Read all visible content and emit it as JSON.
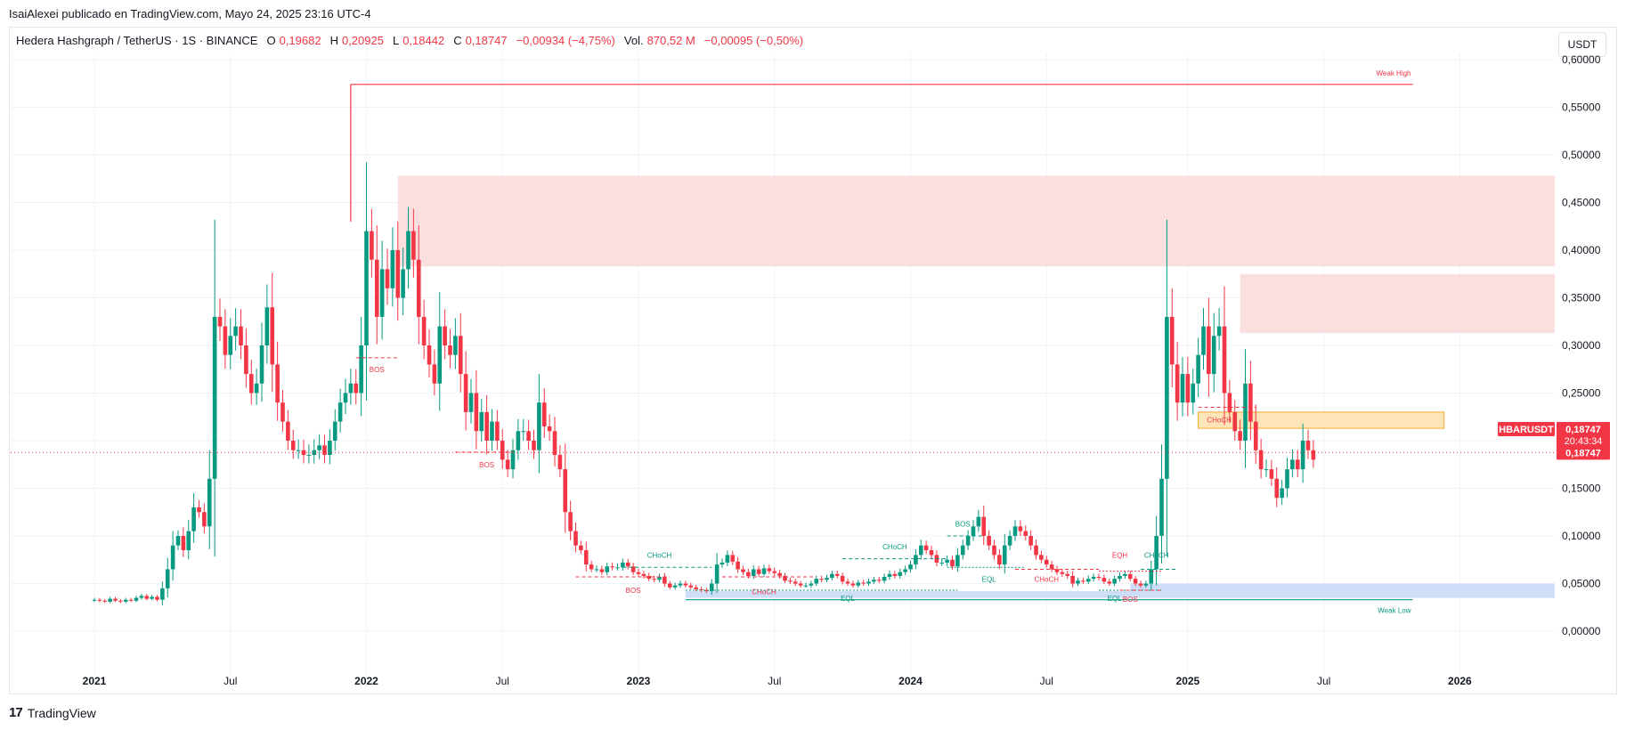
{
  "publish_line": "IsaiAlexei publicado en TradingView.com, Mayo 24, 2025 23:16 UTC-4",
  "legend": {
    "symbol": "Hedera Hashgraph / TetherUS · 1S · BINANCE",
    "o_label": "O",
    "o_value": "0,19682",
    "h_label": "H",
    "h_value": "0,20925",
    "l_label": "L",
    "l_value": "0,18442",
    "c_label": "C",
    "c_value": "0,18747",
    "change": "−0,00934 (−4,75%)",
    "vol_label": "Vol.",
    "vol_value": "870,52 M",
    "vol_change": "−0,00095 (−0,50%)"
  },
  "currency_button": "USDT",
  "footer": {
    "logo": "17",
    "brand": "TradingView"
  },
  "colors": {
    "up": "#089981",
    "down": "#f23645",
    "supply_zone": "#fbdcdc",
    "demand_zone": "#c9daf8",
    "fvg_zone": "#fde3b0",
    "grid": "#f0f3fa"
  },
  "price_labels": {
    "symbol_tag": "HBARUSDT",
    "price": "0,18747",
    "countdown": "20:43:34",
    "last_close": "0,18747"
  },
  "chart_data": {
    "type": "candlestick",
    "ylim": [
      0.0,
      0.6
    ],
    "y_ticks": [
      {
        "v": 0.0,
        "label": "0,00000"
      },
      {
        "v": 0.05,
        "label": "0,05000"
      },
      {
        "v": 0.1,
        "label": "0,10000"
      },
      {
        "v": 0.15,
        "label": "0,15000"
      },
      {
        "v": 0.2,
        "label": "0,20000"
      },
      {
        "v": 0.25,
        "label": "0,25000"
      },
      {
        "v": 0.3,
        "label": "0,30000"
      },
      {
        "v": 0.35,
        "label": "0,35000"
      },
      {
        "v": 0.4,
        "label": "0,40000"
      },
      {
        "v": 0.45,
        "label": "0,45000"
      },
      {
        "v": 0.5,
        "label": "0,50000"
      },
      {
        "v": 0.55,
        "label": "0,55000"
      },
      {
        "v": 0.6,
        "label": "0,60000"
      }
    ],
    "x_ticks": [
      {
        "week": 0,
        "label": "2021",
        "bold": true
      },
      {
        "week": 26,
        "label": "Jul",
        "bold": false
      },
      {
        "week": 52,
        "label": "2022",
        "bold": true
      },
      {
        "week": 78,
        "label": "Jul",
        "bold": false
      },
      {
        "week": 104,
        "label": "2023",
        "bold": true
      },
      {
        "week": 130,
        "label": "Jul",
        "bold": false
      },
      {
        "week": 156,
        "label": "2024",
        "bold": true
      },
      {
        "week": 182,
        "label": "Jul",
        "bold": false
      },
      {
        "week": 209,
        "label": "2025",
        "bold": true
      },
      {
        "week": 235,
        "label": "Jul",
        "bold": false
      },
      {
        "week": 261,
        "label": "2026",
        "bold": true
      }
    ],
    "closes": [
      0.033,
      0.032,
      0.031,
      0.034,
      0.032,
      0.031,
      0.033,
      0.032,
      0.035,
      0.037,
      0.034,
      0.036,
      0.033,
      0.045,
      0.065,
      0.09,
      0.1,
      0.085,
      0.105,
      0.13,
      0.125,
      0.11,
      0.16,
      0.33,
      0.32,
      0.29,
      0.31,
      0.32,
      0.3,
      0.27,
      0.25,
      0.26,
      0.3,
      0.34,
      0.28,
      0.24,
      0.22,
      0.2,
      0.19,
      0.19,
      0.185,
      0.185,
      0.19,
      0.195,
      0.185,
      0.2,
      0.22,
      0.24,
      0.25,
      0.26,
      0.25,
      0.3,
      0.42,
      0.39,
      0.33,
      0.38,
      0.36,
      0.4,
      0.35,
      0.38,
      0.42,
      0.39,
      0.33,
      0.3,
      0.28,
      0.26,
      0.32,
      0.3,
      0.29,
      0.31,
      0.27,
      0.23,
      0.25,
      0.21,
      0.23,
      0.2,
      0.22,
      0.2,
      0.18,
      0.17,
      0.19,
      0.21,
      0.21,
      0.2,
      0.19,
      0.24,
      0.215,
      0.21,
      0.185,
      0.17,
      0.125,
      0.105,
      0.09,
      0.085,
      0.07,
      0.065,
      0.065,
      0.062,
      0.068,
      0.067,
      0.067,
      0.072,
      0.068,
      0.062,
      0.06,
      0.058,
      0.055,
      0.054,
      0.057,
      0.05,
      0.046,
      0.048,
      0.05,
      0.048,
      0.046,
      0.044,
      0.043,
      0.042,
      0.05,
      0.07,
      0.072,
      0.08,
      0.073,
      0.065,
      0.062,
      0.058,
      0.065,
      0.06,
      0.066,
      0.063,
      0.061,
      0.058,
      0.053,
      0.052,
      0.05,
      0.048,
      0.048,
      0.05,
      0.055,
      0.054,
      0.056,
      0.06,
      0.058,
      0.052,
      0.05,
      0.048,
      0.051,
      0.05,
      0.052,
      0.054,
      0.053,
      0.057,
      0.06,
      0.058,
      0.062,
      0.065,
      0.07,
      0.08,
      0.09,
      0.085,
      0.08,
      0.072,
      0.072,
      0.075,
      0.068,
      0.08,
      0.09,
      0.1,
      0.11,
      0.12,
      0.1,
      0.09,
      0.08,
      0.07,
      0.09,
      0.1,
      0.11,
      0.105,
      0.1,
      0.09,
      0.08,
      0.075,
      0.07,
      0.065,
      0.062,
      0.06,
      0.058,
      0.05,
      0.053,
      0.052,
      0.055,
      0.057,
      0.056,
      0.052,
      0.05,
      0.055,
      0.058,
      0.06,
      0.055,
      0.05,
      0.048,
      0.05,
      0.065,
      0.1,
      0.16,
      0.33,
      0.28,
      0.24,
      0.27,
      0.24,
      0.26,
      0.29,
      0.32,
      0.27,
      0.31,
      0.32,
      0.25,
      0.23,
      0.21,
      0.2,
      0.26,
      0.22,
      0.19,
      0.17,
      0.17,
      0.16,
      0.14,
      0.15,
      0.17,
      0.18,
      0.17,
      0.2,
      0.19,
      0.18
    ],
    "sample_interval": "weekly",
    "zones": [
      {
        "kind": "supply",
        "from_week": 58,
        "to_week": 280,
        "low": 0.383,
        "high": 0.478
      },
      {
        "kind": "supply",
        "from_week": 219,
        "to_week": 280,
        "low": 0.313,
        "high": 0.375
      },
      {
        "kind": "fvg",
        "from_week": 211,
        "to_week": 258,
        "low": 0.213,
        "high": 0.23
      },
      {
        "kind": "demand",
        "from_week": 113,
        "to_week": 280,
        "low": 0.035,
        "high": 0.042
      },
      {
        "kind": "demand",
        "from_week": 198,
        "to_week": 280,
        "low": 0.042,
        "high": 0.05
      }
    ],
    "levels": [
      {
        "label": "Weak High",
        "week_from": 49,
        "week_to": 252,
        "value": 0.574,
        "color": "#f23645"
      },
      {
        "label": "Weak Low",
        "week_from": 113,
        "week_to": 252,
        "value": 0.033,
        "color": "#089981"
      }
    ],
    "structure": [
      {
        "label": "BOS",
        "week_from": 50,
        "week_to": 58,
        "value": 0.287,
        "color": "#f23645",
        "label_week": 54,
        "label_value": 0.272
      },
      {
        "label": "BOS",
        "week_from": 69,
        "week_to": 80,
        "value": 0.188,
        "color": "#f23645",
        "label_week": 75,
        "label_value": 0.172
      },
      {
        "label": "BOS",
        "week_from": 92,
        "week_to": 110,
        "value": 0.057,
        "color": "#f23645",
        "label_week": 103,
        "label_value": 0.04
      },
      {
        "label": "CHoCH",
        "week_from": 101,
        "week_to": 118,
        "value": 0.067,
        "color": "#089981",
        "label_week": 108,
        "label_value": 0.077
      },
      {
        "label": "CHoCH",
        "week_from": 120,
        "week_to": 138,
        "value": 0.057,
        "color": "#f23645",
        "label_week": 128,
        "label_value": 0.039
      },
      {
        "label": "CHoCH",
        "week_from": 143,
        "week_to": 163,
        "value": 0.076,
        "color": "#089981",
        "label_week": 153,
        "label_value": 0.086
      },
      {
        "label": "BOS",
        "week_from": 163,
        "week_to": 170,
        "value": 0.1,
        "color": "#089981",
        "label_week": 166,
        "label_value": 0.11
      },
      {
        "label": "EQL",
        "week_from": 163,
        "week_to": 178,
        "value": 0.067,
        "color": "#089981",
        "label_week": 171,
        "label_value": 0.052
      },
      {
        "label": "CHoCH",
        "week_from": 176,
        "week_to": 192,
        "value": 0.065,
        "color": "#f23645",
        "label_week": 182,
        "label_value": 0.052
      },
      {
        "label": "EQH",
        "week_from": 192,
        "week_to": 204,
        "value": 0.063,
        "color": "#f23645",
        "label_week": 196,
        "label_value": 0.077
      },
      {
        "label": "CHoCH",
        "week_from": 200,
        "week_to": 207,
        "value": 0.065,
        "color": "#089981",
        "label_week": 203,
        "label_value": 0.077
      },
      {
        "label": "EQL",
        "week_from": 192,
        "week_to": 204,
        "value": 0.043,
        "color": "#089981",
        "label_week": 195,
        "label_value": 0.032
      },
      {
        "label": "BOS",
        "week_from": 196,
        "week_to": 204,
        "value": 0.043,
        "color": "#f23645",
        "label_week": 198,
        "label_value": 0.031
      },
      {
        "label": "CHoCH",
        "week_from": 211,
        "week_to": 222,
        "value": 0.235,
        "color": "#f23645",
        "label_week": 215,
        "label_value": 0.219
      },
      {
        "label": "EQL",
        "week_from": 113,
        "week_to": 165,
        "value": 0.043,
        "color": "#089981",
        "label_week": 144,
        "label_value": 0.032
      }
    ],
    "last_price": 0.18747
  }
}
